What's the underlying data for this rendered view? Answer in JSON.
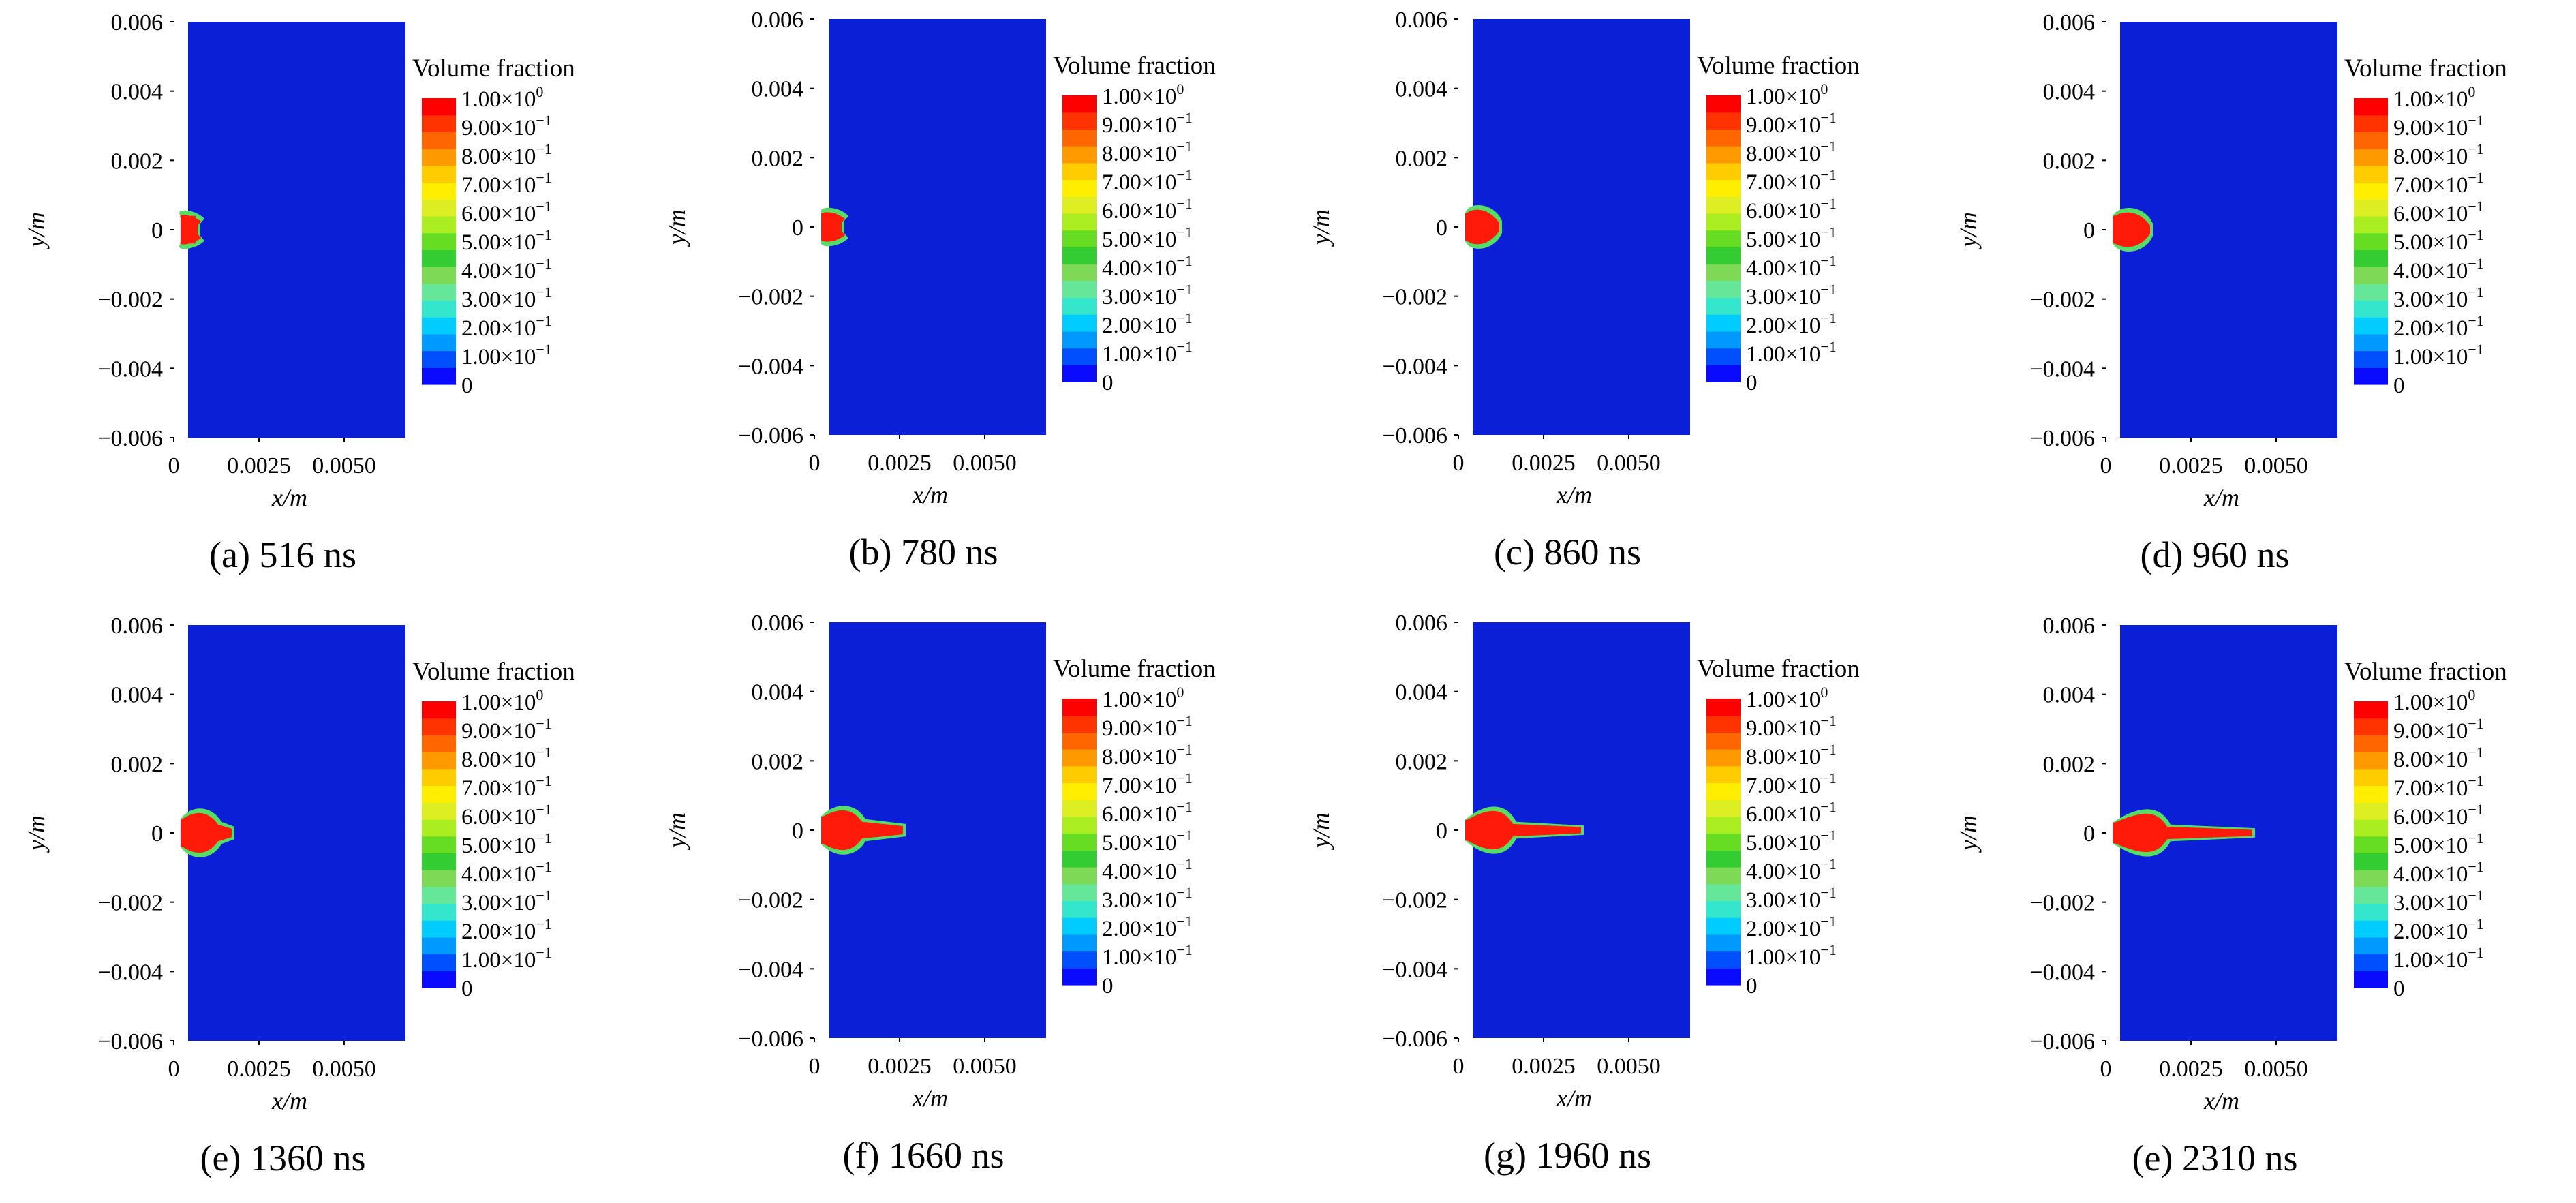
{
  "colorbar": {
    "title": "Volume fraction",
    "tick_labels": [
      {
        "m": "1.00",
        "e": "0"
      },
      {
        "m": "9.00",
        "e": "−1"
      },
      {
        "m": "8.00",
        "e": "−1"
      },
      {
        "m": "7.00",
        "e": "−1"
      },
      {
        "m": "6.00",
        "e": "−1"
      },
      {
        "m": "5.00",
        "e": "−1"
      },
      {
        "m": "4.00",
        "e": "−1"
      },
      {
        "m": "3.00",
        "e": "−1"
      },
      {
        "m": "2.00",
        "e": "−1"
      },
      {
        "m": "1.00",
        "e": "−1"
      },
      {
        "m": "0",
        "e": ""
      }
    ],
    "colors": [
      "#0a0aff",
      "#004fff",
      "#0099ff",
      "#00ccff",
      "#33e6cc",
      "#66e699",
      "#7ed957",
      "#33cc33",
      "#66dd22",
      "#aaee22",
      "#ddee22",
      "#ffee00",
      "#ffcc00",
      "#ff9900",
      "#ff6600",
      "#ff3300",
      "#ff0000"
    ]
  },
  "axes": {
    "xlabel": "x/m",
    "ylabel": "y/m",
    "x_ticks": [
      "0",
      "0.0025",
      "0.0050"
    ],
    "y_ticks": [
      "0.006",
      "0.004",
      "0.002",
      "0",
      "−0.002",
      "−0.004",
      "−0.006"
    ]
  },
  "chart_data": [
    {
      "type": "heatmap",
      "caption": "(a) 516 ns",
      "xlim": [
        0,
        0.0068
      ],
      "ylim": [
        -0.006,
        0.006
      ],
      "jet": {
        "length": 0.0007,
        "half_width": 0.0004,
        "bulge_x": 0.0004,
        "bulge_half_width": 0.0005
      }
    },
    {
      "type": "heatmap",
      "caption": "(b) 780 ns",
      "xlim": [
        0,
        0.0068
      ],
      "ylim": [
        -0.006,
        0.006
      ],
      "jet": {
        "length": 0.0008,
        "half_width": 0.0004,
        "bulge_x": 0.0005,
        "bulge_half_width": 0.0005
      }
    },
    {
      "type": "heatmap",
      "caption": "(c) 860 ns",
      "xlim": [
        0,
        0.0068
      ],
      "ylim": [
        -0.006,
        0.006
      ],
      "jet": {
        "length": 0.0012,
        "half_width": 0.0004,
        "bulge_x": 0.0007,
        "bulge_half_width": 0.0006
      }
    },
    {
      "type": "heatmap",
      "caption": "(d) 960 ns",
      "xlim": [
        0,
        0.0068
      ],
      "ylim": [
        -0.006,
        0.006
      ],
      "jet": {
        "length": 0.0013,
        "half_width": 0.0004,
        "bulge_x": 0.0008,
        "bulge_half_width": 0.0006
      }
    },
    {
      "type": "heatmap",
      "caption": "(e) 1360 ns",
      "xlim": [
        0,
        0.0068
      ],
      "ylim": [
        -0.006,
        0.006
      ],
      "jet": {
        "length": 0.0017,
        "half_width": 0.0004,
        "bulge_x": 0.0009,
        "bulge_half_width": 0.0007
      }
    },
    {
      "type": "heatmap",
      "caption": "(f) 1660 ns",
      "xlim": [
        0,
        0.0068
      ],
      "ylim": [
        -0.006,
        0.006
      ],
      "jet": {
        "length": 0.0026,
        "half_width": 0.0004,
        "bulge_x": 0.001,
        "bulge_half_width": 0.0007
      }
    },
    {
      "type": "heatmap",
      "caption": "(g) 1960 ns",
      "xlim": [
        0,
        0.0068
      ],
      "ylim": [
        -0.006,
        0.006
      ],
      "jet": {
        "length": 0.0036,
        "half_width": 0.0003,
        "bulge_x": 0.0012,
        "bulge_half_width": 0.0007
      }
    },
    {
      "type": "heatmap",
      "caption": "(e) 2310 ns",
      "xlim": [
        0,
        0.0068
      ],
      "ylim": [
        -0.006,
        0.006
      ],
      "jet": {
        "length": 0.0043,
        "half_width": 0.0003,
        "bulge_x": 0.0014,
        "bulge_half_width": 0.0007
      }
    }
  ]
}
